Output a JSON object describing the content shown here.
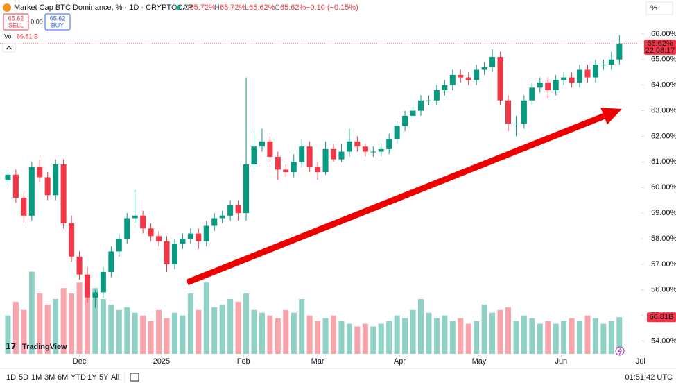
{
  "header": {
    "title": "Market Cap BTC Dominance, % · 1D · CRYPTOCAP",
    "ohlc": [
      {
        "label": "O",
        "value": "65.72%"
      },
      {
        "label": "H",
        "value": "65.72%"
      },
      {
        "label": "L",
        "value": "65.62%"
      },
      {
        "label": "C",
        "value": "65.62%"
      }
    ],
    "change": "−0.10 (−0.15%)",
    "scale_mode": "%"
  },
  "trade": {
    "sell_price": "65.62",
    "sell": "SELL",
    "spread": "0.00",
    "buy_price": "65.62",
    "buy": "BUY"
  },
  "volume_legend": {
    "label": "Vol",
    "value": "66.81 B"
  },
  "brand": "TradingView",
  "toolbar": {
    "ranges": [
      "1D",
      "5D",
      "1M",
      "3M",
      "6M",
      "YTD",
      "1Y",
      "5Y",
      "All"
    ],
    "clock": "01:51:42 UTC"
  },
  "chart_data": {
    "type": "candlestick",
    "x": [
      3,
      6,
      9,
      12,
      15,
      18,
      21,
      24,
      27,
      30,
      33,
      36,
      39,
      42,
      45,
      48,
      51,
      54,
      57,
      60,
      63,
      66,
      69,
      72,
      75,
      78,
      81,
      84,
      87,
      90,
      93,
      96,
      99,
      102,
      105,
      108,
      111,
      114,
      117,
      120,
      123,
      126,
      129,
      132,
      135,
      138,
      141,
      144,
      147,
      150,
      153,
      156,
      159,
      162,
      165,
      168,
      171,
      174,
      177,
      180,
      183,
      186,
      189,
      192,
      195,
      198,
      201,
      204,
      207,
      210,
      213,
      216,
      219,
      222,
      225,
      228,
      231,
      234
    ],
    "open": [
      60.3,
      60.5,
      59.6,
      58.9,
      60.8,
      60.4,
      59.7,
      60.9,
      58.6,
      57.3,
      56.6,
      55.7,
      55.9,
      56.7,
      57.5,
      58.0,
      58.8,
      58.9,
      58.4,
      58.1,
      57.9,
      57.0,
      57.8,
      58.0,
      58.2,
      57.9,
      58.5,
      58.8,
      58.9,
      59.3,
      59.0,
      60.9,
      61.6,
      61.8,
      61.2,
      60.7,
      60.6,
      61.0,
      61.6,
      60.8,
      60.6,
      61.5,
      61.1,
      61.4,
      61.8,
      61.6,
      61.4,
      61.4,
      61.5,
      61.9,
      62.4,
      62.8,
      63.0,
      63.4,
      63.4,
      63.8,
      64.0,
      64.4,
      64.3,
      64.2,
      64.6,
      64.7,
      65.1,
      63.4,
      62.5,
      62.5,
      63.4,
      63.9,
      64.1,
      63.8,
      64.2,
      64.3,
      64.1,
      64.6,
      64.3,
      64.8,
      64.8,
      65.0
    ],
    "high": [
      60.7,
      60.7,
      59.8,
      61.0,
      61.1,
      60.6,
      61.1,
      61.1,
      58.9,
      57.5,
      56.9,
      56.0,
      56.9,
      57.7,
      58.2,
      59.0,
      59.9,
      59.1,
      58.6,
      58.3,
      58.1,
      58.0,
      58.2,
      58.4,
      58.4,
      58.7,
      59.0,
      59.1,
      59.5,
      59.5,
      64.3,
      62.2,
      62.3,
      62.0,
      61.4,
      60.9,
      61.3,
      61.9,
      61.8,
      61.0,
      61.8,
      61.7,
      61.7,
      62.3,
      62.0,
      61.7,
      61.6,
      61.7,
      62.1,
      62.6,
      63.0,
      63.2,
      63.6,
      63.6,
      64.0,
      64.2,
      64.6,
      64.6,
      64.5,
      64.8,
      64.9,
      65.4,
      65.3,
      63.6,
      62.8,
      63.6,
      64.1,
      64.3,
      64.3,
      64.4,
      64.5,
      64.5,
      64.8,
      64.8,
      65.0,
      65.0,
      65.3,
      65.95
    ],
    "low": [
      60.1,
      59.4,
      58.6,
      58.7,
      60.2,
      59.5,
      59.5,
      58.4,
      57.1,
      56.4,
      55.5,
      55.3,
      55.7,
      56.5,
      57.3,
      57.8,
      58.6,
      58.2,
      57.9,
      57.7,
      56.7,
      56.8,
      57.6,
      57.8,
      57.6,
      57.7,
      58.3,
      58.6,
      58.7,
      58.7,
      58.7,
      60.7,
      61.4,
      61.0,
      60.3,
      60.4,
      60.4,
      60.8,
      60.6,
      60.3,
      60.5,
      61.0,
      61.0,
      61.2,
      61.4,
      61.2,
      61.2,
      61.2,
      61.3,
      61.7,
      62.2,
      62.6,
      62.8,
      63.2,
      63.2,
      63.6,
      63.8,
      64.1,
      64.0,
      64.0,
      64.4,
      64.5,
      63.2,
      62.2,
      62.0,
      62.3,
      63.2,
      63.7,
      63.5,
      63.6,
      64.0,
      63.9,
      63.9,
      64.1,
      64.1,
      64.6,
      64.6,
      64.8
    ],
    "close": [
      60.5,
      59.6,
      58.9,
      60.8,
      60.4,
      59.7,
      60.9,
      58.6,
      57.3,
      56.6,
      55.7,
      55.9,
      56.7,
      57.5,
      58.0,
      58.8,
      58.9,
      58.4,
      58.1,
      57.9,
      57.0,
      57.8,
      58.0,
      58.2,
      57.9,
      58.5,
      58.8,
      58.9,
      59.3,
      59.0,
      60.9,
      61.6,
      61.8,
      61.2,
      60.7,
      60.6,
      61.0,
      61.6,
      60.8,
      60.6,
      61.5,
      61.1,
      61.4,
      61.8,
      61.6,
      61.4,
      61.4,
      61.5,
      61.9,
      62.4,
      62.8,
      63.0,
      63.4,
      63.4,
      63.8,
      64.0,
      64.4,
      64.3,
      64.2,
      64.6,
      64.7,
      65.1,
      63.4,
      62.5,
      62.5,
      63.4,
      63.9,
      64.1,
      63.8,
      64.2,
      64.3,
      64.1,
      64.6,
      64.3,
      64.8,
      64.8,
      65.0,
      65.62
    ],
    "volume": [
      70,
      95,
      80,
      150,
      110,
      90,
      100,
      120,
      110,
      130,
      140,
      120,
      100,
      90,
      80,
      85,
      75,
      70,
      60,
      80,
      65,
      75,
      70,
      110,
      80,
      130,
      85,
      90,
      100,
      95,
      110,
      80,
      75,
      70,
      65,
      80,
      75,
      100,
      70,
      60,
      65,
      70,
      60,
      55,
      50,
      55,
      50,
      55,
      60,
      70,
      65,
      80,
      100,
      75,
      65,
      70,
      60,
      65,
      55,
      60,
      90,
      75,
      80,
      85,
      60,
      70,
      65,
      55,
      60,
      55,
      60,
      65,
      60,
      70,
      65,
      55,
      60,
      66.81
    ],
    "up_color": "#089981",
    "down_color": "#f23645",
    "xlim": [
      0,
      242.3
    ],
    "xticks": [
      {
        "value": 30,
        "label": "Dec"
      },
      {
        "value": 61,
        "label": "2025"
      },
      {
        "value": 92,
        "label": "Feb"
      },
      {
        "value": 120,
        "label": "Mar"
      },
      {
        "value": 151,
        "label": "Apr"
      },
      {
        "value": 181,
        "label": "May"
      },
      {
        "value": 212,
        "label": "Jun"
      },
      {
        "value": 242,
        "label": "Jul"
      }
    ],
    "ylim": [
      53.5,
      66.24
    ],
    "yticks": [
      {
        "value": 54,
        "label": "54.00%"
      },
      {
        "value": 55,
        "label": "55.00%"
      },
      {
        "value": 56,
        "label": "56.00%"
      },
      {
        "value": 57,
        "label": "57.00%"
      },
      {
        "value": 58,
        "label": "58.00%"
      },
      {
        "value": 59,
        "label": "59.00%"
      },
      {
        "value": 60,
        "label": "60.00%"
      },
      {
        "value": 61,
        "label": "61.00%"
      },
      {
        "value": 62,
        "label": "62.00%"
      },
      {
        "value": 63,
        "label": "63.00%"
      },
      {
        "value": 64,
        "label": "64.00%"
      },
      {
        "value": 65,
        "label": "65.00%"
      },
      {
        "value": 66,
        "label": "66.00%"
      }
    ],
    "volume_lim": [
      0,
      200
    ],
    "grid": false,
    "last_price_label": "65.62%",
    "countdown": "22:08:17",
    "volume_label": "66.81B"
  }
}
